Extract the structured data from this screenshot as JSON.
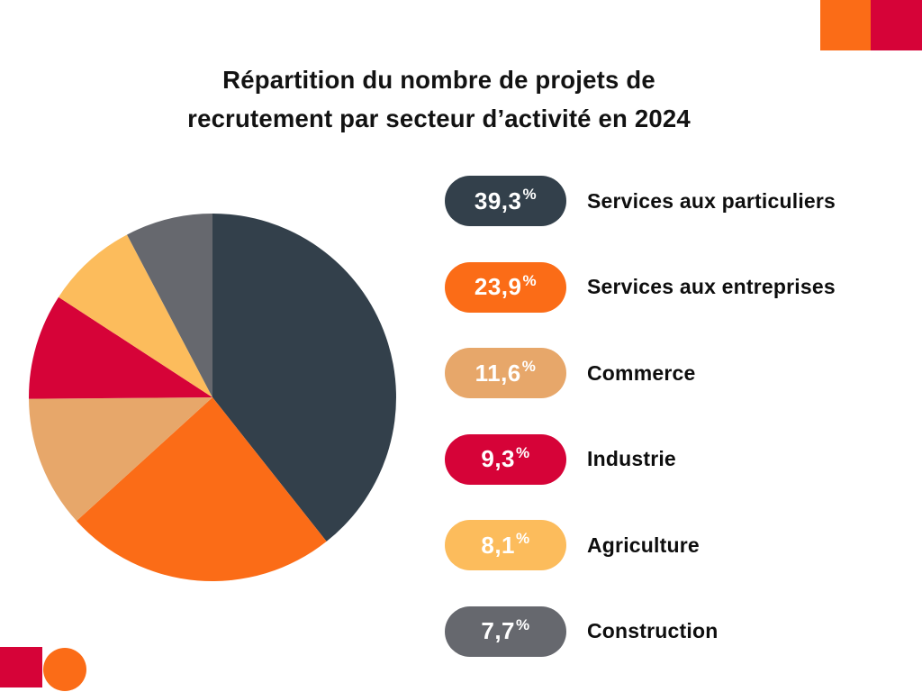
{
  "title": {
    "line1": "Répartition du nombre de projets de",
    "line2": "recrutement par secteur d’activité en 2024"
  },
  "chart_data": {
    "type": "pie",
    "title": "Répartition du nombre de projets de recrutement par secteur d’activité en 2024",
    "start_angle_deg": 0,
    "direction": "clockwise",
    "legend_position": "right",
    "series": [
      {
        "label": "Services aux particuliers",
        "value": 39.3,
        "pct_label": "39,3%",
        "color": "#33404B"
      },
      {
        "label": "Services aux entreprises",
        "value": 23.9,
        "pct_label": "23,9%",
        "color": "#FB6C17"
      },
      {
        "label": "Commerce",
        "value": 11.6,
        "pct_label": "11,6%",
        "color": "#E7A76A"
      },
      {
        "label": "Industrie",
        "value": 9.3,
        "pct_label": "9,3%",
        "color": "#D60338"
      },
      {
        "label": "Agriculture",
        "value": 8.1,
        "pct_label": "8,1%",
        "color": "#FCBC5C"
      },
      {
        "label": "Construction",
        "value": 7.7,
        "pct_label": "7,7%",
        "color": "#66686E"
      }
    ]
  },
  "decorations": {
    "top_right_orange": "#FB6C17",
    "top_right_red": "#D60338",
    "bottom_left_red_square": "#D60338",
    "bottom_left_orange_circle": "#FB6C17"
  }
}
